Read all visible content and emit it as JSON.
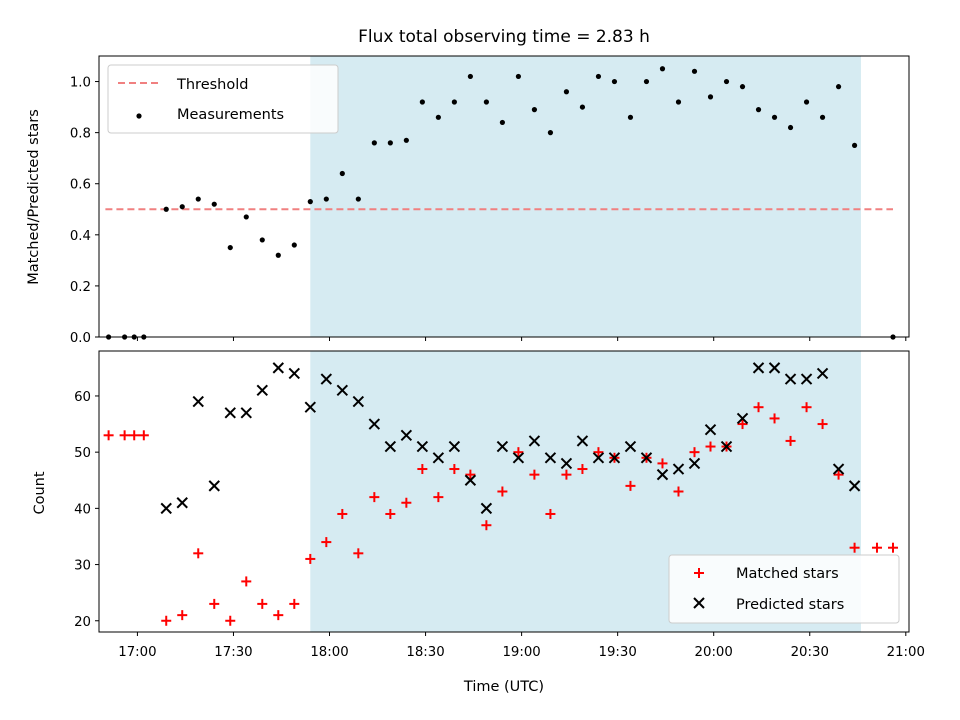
{
  "chart_data": [
    {
      "type": "scatter",
      "title": "Flux total observing time = 2.83 h",
      "xlabel": "",
      "ylabel": "Matched/Predicted stars",
      "xlim": [
        "16:48",
        "21:01"
      ],
      "ylim": [
        0,
        1.1
      ],
      "yticks": [
        "0.0",
        "0.2",
        "0.4",
        "0.6",
        "0.8",
        "1.0"
      ],
      "grid": false,
      "legend_position": "top-left",
      "shaded_region": {
        "x0": "17:54",
        "x1": "20:46",
        "color": "#add8e6"
      },
      "threshold": {
        "name": "Threshold",
        "y": 0.5,
        "x0": "16:50",
        "x1": "20:56",
        "color": "#f08080"
      },
      "series": [
        {
          "name": "Measurements",
          "marker": "dot",
          "color": "#000000",
          "x": [
            "16:51",
            "16:56",
            "16:59",
            "17:02",
            "17:09",
            "17:14",
            "17:19",
            "17:24",
            "17:29",
            "17:34",
            "17:39",
            "17:44",
            "17:49",
            "17:54",
            "17:59",
            "18:04",
            "18:09",
            "18:14",
            "18:19",
            "18:24",
            "18:29",
            "18:34",
            "18:39",
            "18:44",
            "18:49",
            "18:54",
            "18:59",
            "19:04",
            "19:09",
            "19:14",
            "19:19",
            "19:24",
            "19:29",
            "19:34",
            "19:39",
            "19:44",
            "19:49",
            "19:54",
            "19:59",
            "20:04",
            "20:09",
            "20:14",
            "20:19",
            "20:24",
            "20:29",
            "20:34",
            "20:39",
            "20:44",
            "20:56"
          ],
          "values": [
            0.0,
            0.0,
            0.0,
            0.0,
            0.5,
            0.51,
            0.54,
            0.52,
            0.35,
            0.47,
            0.38,
            0.32,
            0.36,
            0.53,
            0.54,
            0.64,
            0.54,
            0.76,
            0.76,
            0.77,
            0.92,
            0.86,
            0.92,
            1.02,
            0.92,
            0.84,
            1.02,
            0.89,
            0.8,
            0.96,
            0.9,
            1.02,
            1.0,
            0.86,
            1.0,
            1.05,
            0.92,
            1.04,
            0.94,
            1.0,
            0.98,
            0.89,
            0.86,
            0.82,
            0.92,
            0.86,
            0.98,
            0.75,
            0.0
          ]
        }
      ]
    },
    {
      "type": "scatter",
      "title": "",
      "xlabel": "Time (UTC)",
      "ylabel": "Count",
      "xlim": [
        "16:48",
        "21:01"
      ],
      "ylim": [
        18,
        68
      ],
      "xticks": [
        "17:00",
        "17:30",
        "18:00",
        "18:30",
        "19:00",
        "19:30",
        "20:00",
        "20:30",
        "21:00"
      ],
      "yticks": [
        "20",
        "30",
        "40",
        "50",
        "60"
      ],
      "grid": false,
      "legend_position": "bottom-right",
      "shaded_region": {
        "x0": "17:54",
        "x1": "20:46",
        "color": "#add8e6"
      },
      "series": [
        {
          "name": "Matched stars",
          "marker": "plus",
          "color": "#ff0000",
          "x": [
            "16:51",
            "16:56",
            "16:59",
            "17:02",
            "17:09",
            "17:14",
            "17:19",
            "17:24",
            "17:29",
            "17:34",
            "17:39",
            "17:44",
            "17:49",
            "17:54",
            "17:59",
            "18:04",
            "18:09",
            "18:14",
            "18:19",
            "18:24",
            "18:29",
            "18:34",
            "18:39",
            "18:44",
            "18:49",
            "18:54",
            "18:59",
            "19:04",
            "19:09",
            "19:14",
            "19:19",
            "19:24",
            "19:29",
            "19:34",
            "19:39",
            "19:44",
            "19:49",
            "19:54",
            "19:59",
            "20:04",
            "20:09",
            "20:14",
            "20:19",
            "20:24",
            "20:29",
            "20:34",
            "20:39",
            "20:44",
            "20:51",
            "20:56"
          ],
          "values": [
            53,
            53,
            53,
            53,
            20,
            21,
            32,
            23,
            20,
            27,
            23,
            21,
            23,
            31,
            34,
            39,
            32,
            42,
            39,
            41,
            47,
            42,
            47,
            46,
            37,
            43,
            50,
            46,
            39,
            46,
            47,
            50,
            49,
            44,
            49,
            48,
            43,
            50,
            51,
            51,
            55,
            58,
            56,
            52,
            58,
            55,
            46,
            33,
            33,
            33
          ]
        },
        {
          "name": "Predicted stars",
          "marker": "x",
          "color": "#000000",
          "x": [
            "17:09",
            "17:14",
            "17:19",
            "17:24",
            "17:29",
            "17:34",
            "17:39",
            "17:44",
            "17:49",
            "17:54",
            "17:59",
            "18:04",
            "18:09",
            "18:14",
            "18:19",
            "18:24",
            "18:29",
            "18:34",
            "18:39",
            "18:44",
            "18:49",
            "18:54",
            "18:59",
            "19:04",
            "19:09",
            "19:14",
            "19:19",
            "19:24",
            "19:29",
            "19:34",
            "19:39",
            "19:44",
            "19:49",
            "19:54",
            "19:59",
            "20:04",
            "20:09",
            "20:14",
            "20:19",
            "20:24",
            "20:29",
            "20:34",
            "20:39",
            "20:44"
          ],
          "values": [
            40,
            41,
            59,
            44,
            57,
            57,
            61,
            65,
            64,
            58,
            63,
            61,
            59,
            55,
            51,
            53,
            51,
            49,
            51,
            45,
            40,
            51,
            49,
            52,
            49,
            48,
            52,
            49,
            49,
            51,
            49,
            46,
            47,
            48,
            54,
            51,
            56,
            65,
            65,
            63,
            63,
            64,
            47,
            44
          ]
        }
      ]
    }
  ]
}
